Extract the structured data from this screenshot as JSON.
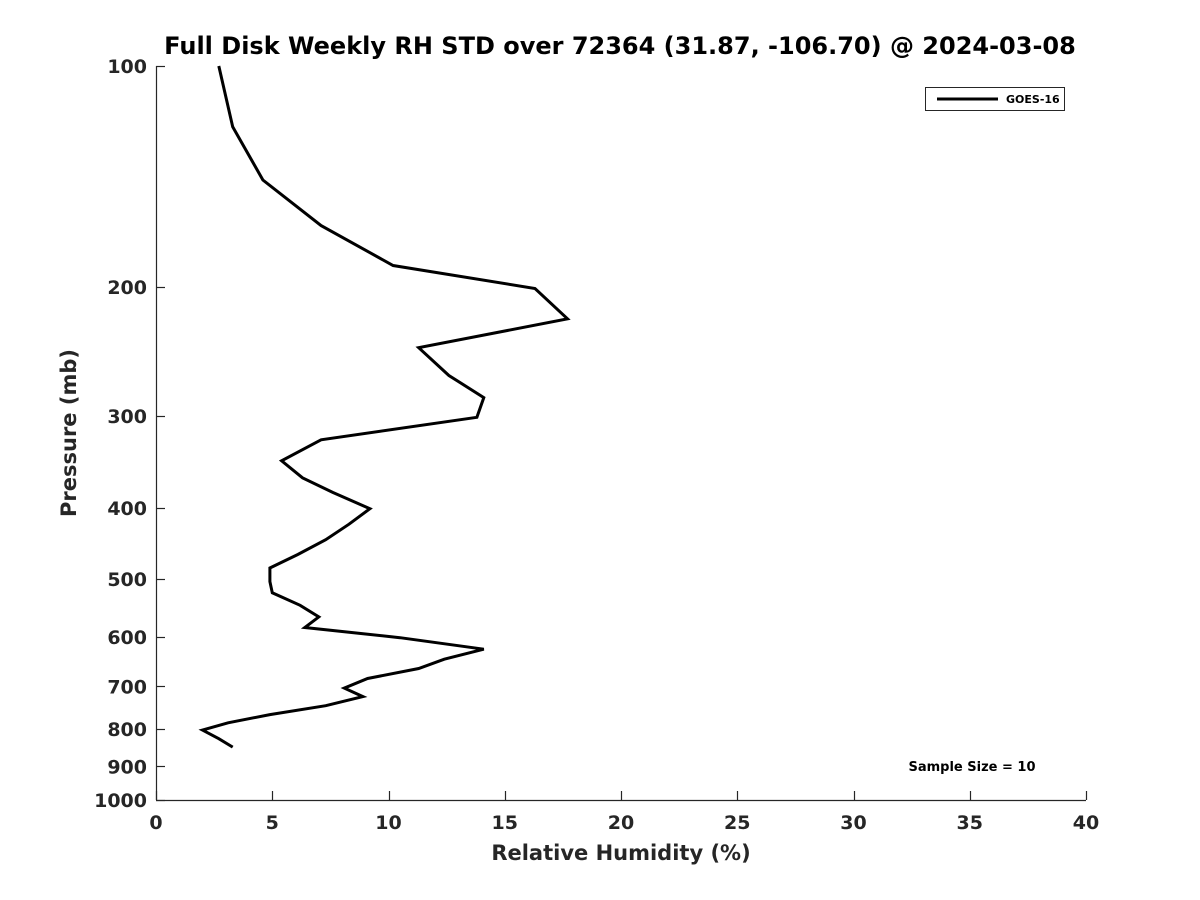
{
  "chart_data": {
    "type": "line",
    "title": "Full Disk Weekly RH STD over 72364 (31.87, -106.70) @ 2024-03-08",
    "xlabel": "Relative Humidity (%)",
    "ylabel": "Pressure (mb)",
    "xlim": [
      0,
      40
    ],
    "ylim": [
      1000,
      100
    ],
    "y_scale": "log",
    "grid": false,
    "x_ticks": [
      0,
      5,
      10,
      15,
      20,
      25,
      30,
      35,
      40
    ],
    "y_ticks": [
      100,
      200,
      300,
      400,
      500,
      600,
      700,
      800,
      900,
      1000
    ],
    "legend_position": "top-right",
    "series": [
      {
        "name": "GOES-16",
        "color": "#000000",
        "points": [
          {
            "rh": 2.7,
            "p": 100
          },
          {
            "rh": 3.3,
            "p": 121
          },
          {
            "rh": 4.6,
            "p": 143
          },
          {
            "rh": 7.1,
            "p": 165
          },
          {
            "rh": 10.2,
            "p": 187
          },
          {
            "rh": 16.3,
            "p": 201
          },
          {
            "rh": 17.7,
            "p": 221
          },
          {
            "rh": 11.3,
            "p": 242
          },
          {
            "rh": 12.6,
            "p": 264
          },
          {
            "rh": 14.1,
            "p": 283
          },
          {
            "rh": 13.8,
            "p": 301
          },
          {
            "rh": 7.1,
            "p": 323
          },
          {
            "rh": 5.4,
            "p": 345
          },
          {
            "rh": 6.3,
            "p": 364
          },
          {
            "rh": 7.6,
            "p": 381
          },
          {
            "rh": 9.2,
            "p": 401
          },
          {
            "rh": 8.3,
            "p": 421
          },
          {
            "rh": 7.3,
            "p": 442
          },
          {
            "rh": 6.1,
            "p": 463
          },
          {
            "rh": 4.9,
            "p": 483
          },
          {
            "rh": 4.9,
            "p": 504
          },
          {
            "rh": 5.0,
            "p": 522
          },
          {
            "rh": 6.2,
            "p": 543
          },
          {
            "rh": 7.0,
            "p": 563
          },
          {
            "rh": 6.4,
            "p": 582
          },
          {
            "rh": 10.5,
            "p": 601
          },
          {
            "rh": 14.1,
            "p": 623
          },
          {
            "rh": 12.4,
            "p": 643
          },
          {
            "rh": 11.3,
            "p": 662
          },
          {
            "rh": 9.1,
            "p": 683
          },
          {
            "rh": 8.1,
            "p": 704
          },
          {
            "rh": 8.9,
            "p": 723
          },
          {
            "rh": 7.3,
            "p": 744
          },
          {
            "rh": 4.9,
            "p": 765
          },
          {
            "rh": 3.1,
            "p": 785
          },
          {
            "rh": 2.0,
            "p": 803
          },
          {
            "rh": 2.7,
            "p": 825
          },
          {
            "rh": 3.3,
            "p": 847
          }
        ]
      }
    ],
    "annotations": [
      "Sample Size = 10"
    ]
  }
}
